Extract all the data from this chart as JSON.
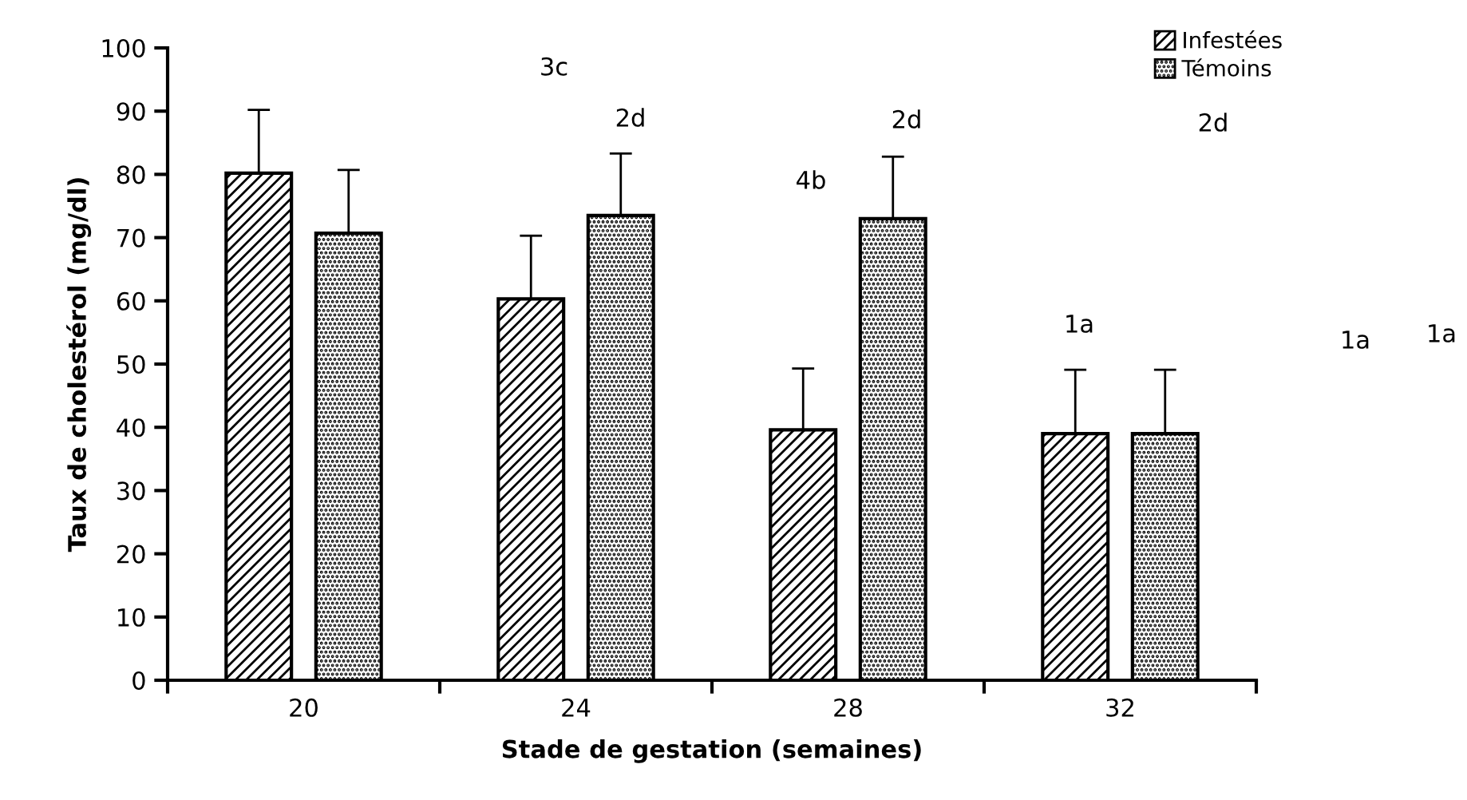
{
  "chart_data": {
    "type": "bar",
    "xlabel": "Stade de gestation (semaines)",
    "ylabel": "Taux de cholestérol (mg/dl)",
    "categories": [
      "20",
      "24",
      "28",
      "32"
    ],
    "series": [
      {
        "name": "Infestées",
        "color": "#000000",
        "values": [
          80.2,
          60.3,
          39.6,
          39.0
        ],
        "errors": [
          [
            80.2,
            90.2
          ],
          [
            60.3,
            70.3
          ],
          [
            39.6,
            49.3
          ],
          [
            39.0,
            49.1
          ]
        ]
      },
      {
        "name": "Témoins",
        "color": "#000000",
        "values": [
          70.7,
          73.5,
          73.0,
          39.0
        ],
        "errors": [
          [
            70.7,
            80.7
          ],
          [
            73.5,
            83.3
          ],
          [
            73.0,
            82.8
          ],
          [
            39.0,
            49.1
          ]
        ]
      }
    ],
    "ylim": [
      0,
      100
    ],
    "yticks": [
      0,
      10,
      20,
      30,
      40,
      50,
      60,
      70,
      80,
      90,
      100
    ],
    "grid": false,
    "legend": "top right",
    "annotations": [
      "3c",
      "2d",
      "4b",
      "2d",
      "2d",
      "1a",
      "1a",
      "1a"
    ]
  }
}
